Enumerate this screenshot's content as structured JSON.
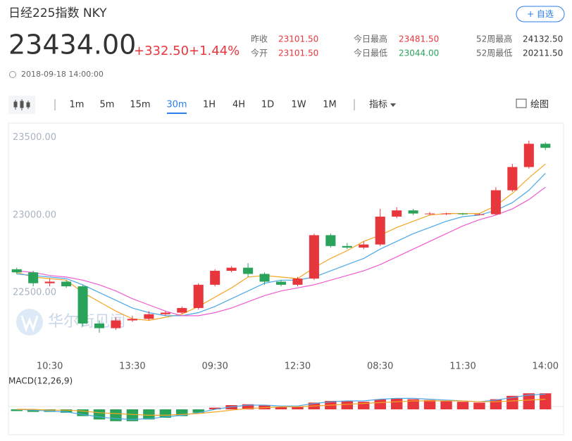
{
  "header": {
    "title": "日经225指数 NKY",
    "price": "23434.00",
    "change": "+332.50",
    "change_pct": "+1.44%",
    "datetime": "2018-09-18 14:00:00",
    "watch_button": "+ 自选",
    "stats": [
      {
        "label": "昨收",
        "value": "23101.50"
      },
      {
        "label": "今开",
        "value": "23101.50"
      },
      {
        "label": "今日最高",
        "value": "23481.50"
      },
      {
        "label": "今日最低",
        "value": "23044.00"
      },
      {
        "label": "52周最高",
        "value": "24132.50"
      },
      {
        "label": "52周最低",
        "value": "20211.50"
      }
    ]
  },
  "toolbar": {
    "intervals": [
      "1m",
      "5m",
      "15m",
      "30m",
      "1H",
      "4H",
      "1D",
      "1W",
      "1M"
    ],
    "active_interval": 3,
    "indicator": "指标",
    "draw": "绘图"
  },
  "watermark": "华尔街见闻",
  "chart_data": {
    "type": "candlestick",
    "categories": [
      null,
      null,
      "10:30",
      null,
      null,
      null,
      null,
      "13:30",
      null,
      null,
      null,
      null,
      "09:30",
      null,
      null,
      null,
      null,
      "12:30",
      null,
      null,
      null,
      null,
      "08:30",
      null,
      null,
      null,
      null,
      "11:30",
      null,
      null,
      null,
      null,
      "14:00"
    ],
    "open": [
      22650,
      22630,
      22560,
      22570,
      22540,
      22300,
      22270,
      22320,
      22330,
      22360,
      22370,
      22400,
      22550,
      22640,
      22660,
      22620,
      22570,
      22550,
      22590,
      22870,
      22800,
      22790,
      22810,
      22990,
      23030,
      23010,
      23010,
      23010,
      23005,
      23005,
      23160,
      23310,
      23460
    ],
    "high": [
      22660,
      22640,
      22590,
      22580,
      22550,
      22320,
      22340,
      22350,
      22380,
      22380,
      22410,
      22560,
      22650,
      22670,
      22690,
      22630,
      22580,
      22600,
      22880,
      22880,
      22820,
      22830,
      23040,
      23050,
      23040,
      23020,
      23015,
      23015,
      23010,
      23180,
      23330,
      23480,
      23470
    ],
    "low": [
      22620,
      22540,
      22540,
      22530,
      22280,
      22240,
      22260,
      22310,
      22320,
      22350,
      22360,
      22390,
      22540,
      22630,
      22600,
      22550,
      22540,
      22540,
      22580,
      22790,
      22780,
      22780,
      22800,
      22980,
      23000,
      23000,
      23000,
      23000,
      23000,
      23000,
      23150,
      23300,
      23420
    ],
    "close": [
      22630,
      22560,
      22570,
      22540,
      22300,
      22270,
      22320,
      22330,
      22360,
      22370,
      22400,
      22550,
      22640,
      22660,
      22620,
      22570,
      22550,
      22590,
      22870,
      22800,
      22790,
      22810,
      22990,
      23030,
      23010,
      23010,
      23010,
      23005,
      23005,
      23160,
      23310,
      23460,
      23434
    ],
    "up_color": "#e8363d",
    "down_color": "#29a35a",
    "series": [
      {
        "color": "#f5a623",
        "values": [
          22630,
          22600,
          22590,
          22580,
          22500,
          22440,
          22380,
          22330,
          22320,
          22340,
          22360,
          22410,
          22470,
          22530,
          22600,
          22610,
          22600,
          22590,
          22660,
          22720,
          22770,
          22830,
          22870,
          22920,
          22960,
          23000,
          23010,
          23010,
          23010,
          23060,
          23140,
          23240,
          23330
        ]
      },
      {
        "color": "#4aa8e8",
        "values": [
          22620,
          22610,
          22600,
          22590,
          22550,
          22500,
          22450,
          22400,
          22370,
          22350,
          22350,
          22370,
          22410,
          22460,
          22510,
          22560,
          22580,
          22580,
          22600,
          22640,
          22680,
          22720,
          22780,
          22830,
          22880,
          22920,
          22960,
          22990,
          23000,
          23030,
          23080,
          23160,
          23270
        ]
      },
      {
        "color": "#f05bd0",
        "values": [
          22640,
          22630,
          22610,
          22600,
          22580,
          22550,
          22510,
          22460,
          22420,
          22380,
          22350,
          22350,
          22370,
          22400,
          22440,
          22480,
          22510,
          22530,
          22550,
          22580,
          22610,
          22640,
          22680,
          22730,
          22780,
          22830,
          22880,
          22930,
          22970,
          23000,
          23040,
          23100,
          23180
        ]
      }
    ],
    "ylim": [
      22100,
      23580
    ],
    "yticks": [
      {
        "value": 22500,
        "label": "22500.00"
      },
      {
        "value": 23000,
        "label": "23000.00"
      },
      {
        "value": 23500,
        "label": "23500.00"
      }
    ],
    "macd": {
      "label": "MACD(12,26,9)",
      "ylim": [
        -20,
        25
      ],
      "bars": [
        -2,
        -3,
        -3,
        -4,
        -8,
        -12,
        -14,
        -14,
        -12,
        -10,
        -8,
        -4,
        2,
        5,
        6,
        5,
        3,
        3,
        8,
        10,
        10,
        9,
        12,
        13,
        12,
        11,
        10,
        9,
        8,
        12,
        16,
        19,
        19
      ],
      "lines": [
        {
          "color": "#4aa8e8",
          "values": [
            0,
            -1,
            -2,
            -3,
            -6,
            -9,
            -11,
            -12,
            -11,
            -9,
            -7,
            -4,
            0,
            3,
            5,
            5,
            4,
            4,
            7,
            9,
            10,
            10,
            12,
            13,
            13,
            12,
            11,
            10,
            9,
            11,
            14,
            17,
            18
          ]
        },
        {
          "color": "#f5a623",
          "values": [
            0,
            0,
            -1,
            -1,
            -2,
            -4,
            -5,
            -6,
            -7,
            -7,
            -6,
            -5,
            -3,
            -1,
            1,
            2,
            3,
            3,
            4,
            5,
            6,
            7,
            8,
            9,
            10,
            10,
            10,
            10,
            9,
            9,
            10,
            11,
            12
          ]
        }
      ]
    }
  }
}
